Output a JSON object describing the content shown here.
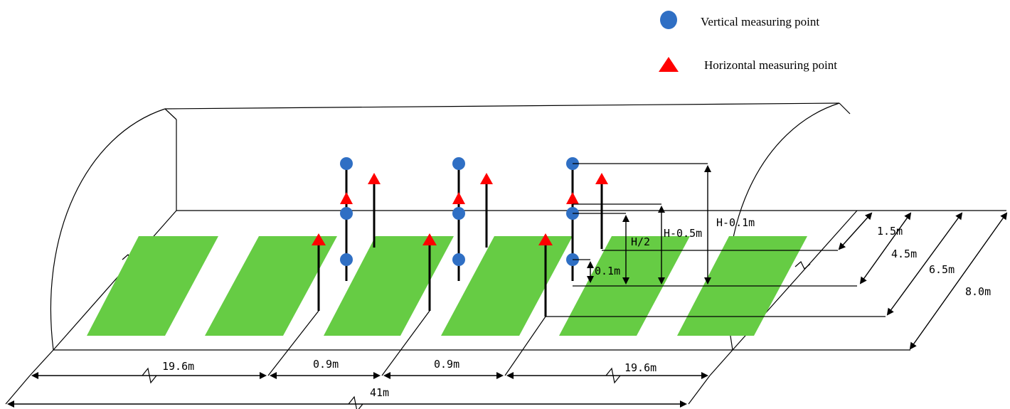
{
  "legend": {
    "vertical_label": "Vertical  measuring point",
    "horizontal_label": "Horizontal measuring point",
    "vertical_color": "#2f6fc4",
    "horizontal_color": "#ff0000"
  },
  "colors": {
    "strip": "#66cc44",
    "line": "#000000"
  },
  "height_labels": {
    "h_half": "H/2",
    "h_minus_05": "H-0.5m",
    "h_minus_01": "H-0.1m",
    "point_01": "0.1m"
  },
  "width_labels": {
    "w1": "1.5m",
    "w2": "4.5m",
    "w3": "6.5m",
    "w4": "8.0m"
  },
  "length_labels": {
    "seg1": "19.6m",
    "seg2": "0.9m",
    "seg3": "0.9m",
    "seg4": "19.6m",
    "total": "41m"
  }
}
